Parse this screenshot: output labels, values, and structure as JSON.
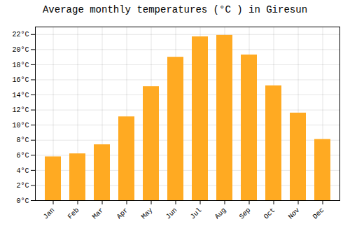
{
  "chart_data": {
    "type": "bar",
    "title": "Average monthly temperatures (°C ) in Giresun",
    "categories": [
      "Jan",
      "Feb",
      "Mar",
      "Apr",
      "May",
      "Jun",
      "Jul",
      "Aug",
      "Sep",
      "Oct",
      "Nov",
      "Dec"
    ],
    "values": [
      5.8,
      6.2,
      7.4,
      11.1,
      15.1,
      19.0,
      21.7,
      21.9,
      19.3,
      15.2,
      11.6,
      8.1
    ],
    "color": "#FFAA22",
    "ylim": [
      0,
      23
    ],
    "yticks": [
      {
        "value": 0,
        "label": "0°C"
      },
      {
        "value": 2,
        "label": "2°C"
      },
      {
        "value": 4,
        "label": "4°C"
      },
      {
        "value": 6,
        "label": "6°C"
      },
      {
        "value": 8,
        "label": "8°C"
      },
      {
        "value": 10,
        "label": "10°C"
      },
      {
        "value": 12,
        "label": "12°C"
      },
      {
        "value": 14,
        "label": "14°C"
      },
      {
        "value": 16,
        "label": "16°C"
      },
      {
        "value": 18,
        "label": "18°C"
      },
      {
        "value": 20,
        "label": "20°C"
      },
      {
        "value": 22,
        "label": "22°C"
      }
    ],
    "grid": true
  }
}
